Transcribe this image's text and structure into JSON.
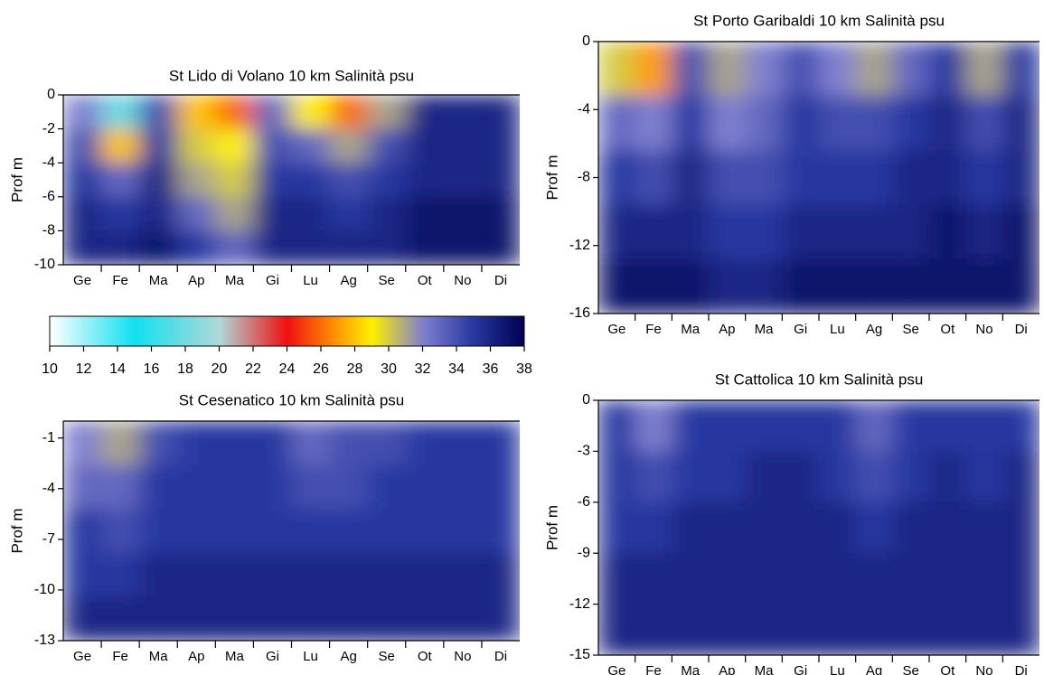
{
  "chart_data": [
    {
      "type": "heatmap",
      "title": "St Lido di Volano    10 km    Salinità  psu",
      "ylabel": "Prof m",
      "categories": [
        "Ge",
        "Fe",
        "Ma",
        "Ap",
        "Ma",
        "Gi",
        "Lu",
        "Ag",
        "Se",
        "Ot",
        "No",
        "Di"
      ],
      "y": [
        -1,
        -3,
        -5,
        -7,
        -9
      ],
      "ylim": [
        -10,
        0
      ],
      "yticks": [
        0,
        -2,
        -4,
        -6,
        -8,
        -10
      ],
      "values": [
        [
          32,
          34,
          35,
          36,
          36
        ],
        [
          18,
          28,
          33,
          35,
          36
        ],
        [
          34,
          35,
          36,
          36,
          37
        ],
        [
          28,
          30,
          31,
          33,
          35
        ],
        [
          26,
          29,
          30,
          31,
          33
        ],
        [
          33,
          34,
          35,
          36,
          36
        ],
        [
          29,
          33,
          35,
          36,
          36
        ],
        [
          26,
          31,
          34,
          35,
          36
        ],
        [
          31,
          34,
          35,
          36,
          36
        ],
        [
          36,
          36,
          36,
          37,
          37
        ],
        [
          36,
          36,
          36,
          37,
          37
        ],
        [
          36,
          36,
          36,
          37,
          37
        ]
      ]
    },
    {
      "type": "heatmap",
      "title": "St  Porto Garibaldi    10 km    Salinità  psu",
      "ylabel": "Prof m",
      "categories": [
        "Ge",
        "Fe",
        "Ma",
        "Ap",
        "Ma",
        "Gi",
        "Lu",
        "Ag",
        "Se",
        "Ot",
        "No",
        "Di"
      ],
      "y": [
        -1.6,
        -4.8,
        -8,
        -11.2,
        -14.4
      ],
      "ylim": [
        -16,
        0
      ],
      "yticks": [
        0,
        -4,
        -8,
        -12,
        -16
      ],
      "values": [
        [
          30,
          33,
          35,
          36,
          37
        ],
        [
          27,
          32,
          34,
          36,
          37
        ],
        [
          34,
          35,
          36,
          36,
          37
        ],
        [
          31,
          32,
          34,
          35,
          36
        ],
        [
          32,
          33,
          34,
          35,
          36
        ],
        [
          34,
          35,
          35,
          36,
          37
        ],
        [
          32,
          34,
          35,
          36,
          37
        ],
        [
          31,
          34,
          35,
          36,
          37
        ],
        [
          33,
          35,
          36,
          36,
          37
        ],
        [
          35,
          36,
          36,
          37,
          37
        ],
        [
          31,
          34,
          35,
          36,
          37
        ],
        [
          35,
          36,
          36,
          37,
          37
        ]
      ]
    },
    {
      "type": "colorbar",
      "lim": [
        10,
        38
      ],
      "ticks": [
        10,
        12,
        14,
        16,
        18,
        20,
        22,
        24,
        26,
        28,
        30,
        32,
        34,
        36,
        38
      ],
      "colormap": [
        {
          "value": 10,
          "color": "#ffffff"
        },
        {
          "value": 15,
          "color": "#10e0f0"
        },
        {
          "value": 20,
          "color": "#b0d8d8"
        },
        {
          "value": 24,
          "color": "#f01010"
        },
        {
          "value": 27,
          "color": "#ff9a00"
        },
        {
          "value": 29,
          "color": "#fff000"
        },
        {
          "value": 32,
          "color": "#8080d0"
        },
        {
          "value": 35,
          "color": "#2838a0"
        },
        {
          "value": 38,
          "color": "#000050"
        }
      ]
    },
    {
      "type": "heatmap",
      "title": "St  Cesenatico    10 km    Salinità  psu",
      "ylabel": "Prof m",
      "categories": [
        "Ge",
        "Fe",
        "Ma",
        "Ap",
        "Ma",
        "Gi",
        "Lu",
        "Ag",
        "Se",
        "Ot",
        "No",
        "Di"
      ],
      "y": [
        -1.3,
        -3.9,
        -6.5,
        -9.1,
        -11.7
      ],
      "ylim": [
        -13,
        0
      ],
      "yticks": [
        -1,
        -4,
        -7,
        -10,
        -13
      ],
      "values": [
        [
          32,
          33,
          35,
          35,
          36
        ],
        [
          31,
          33,
          34,
          35,
          36
        ],
        [
          34,
          35,
          35,
          36,
          36
        ],
        [
          35,
          35,
          35,
          36,
          36
        ],
        [
          35,
          35,
          35,
          36,
          36
        ],
        [
          35,
          35,
          35,
          36,
          36
        ],
        [
          33,
          34,
          35,
          36,
          36
        ],
        [
          34,
          34,
          35,
          36,
          36
        ],
        [
          34,
          35,
          35,
          36,
          36
        ],
        [
          35,
          35,
          35,
          36,
          36
        ],
        [
          35,
          35,
          35,
          36,
          36
        ],
        [
          35,
          35,
          35,
          36,
          36
        ]
      ]
    },
    {
      "type": "heatmap",
      "title": "St  Cattolica    10 km    Salinità  psu",
      "ylabel": "Prof m",
      "categories": [
        "Ge",
        "Fe",
        "Ma",
        "Ap",
        "Ma",
        "Gi",
        "Lu",
        "Ag",
        "Se",
        "Ot",
        "No",
        "Di"
      ],
      "y": [
        -1.5,
        -4.5,
        -7.5,
        -10.5,
        -13.5
      ],
      "ylim": [
        -15,
        0
      ],
      "yticks": [
        0,
        -3,
        -6,
        -9,
        -12,
        -15
      ],
      "values": [
        [
          35,
          35,
          35,
          36,
          36
        ],
        [
          32,
          34,
          35,
          36,
          36
        ],
        [
          35,
          35,
          36,
          36,
          36
        ],
        [
          35,
          35,
          36,
          36,
          36
        ],
        [
          35,
          36,
          36,
          36,
          36
        ],
        [
          35,
          36,
          36,
          36,
          36
        ],
        [
          35,
          35,
          36,
          36,
          36
        ],
        [
          33,
          34,
          35,
          36,
          36
        ],
        [
          35,
          35,
          36,
          36,
          36
        ],
        [
          35,
          36,
          36,
          36,
          36
        ],
        [
          35,
          35,
          36,
          36,
          36
        ],
        [
          35,
          36,
          36,
          36,
          36
        ]
      ]
    }
  ]
}
